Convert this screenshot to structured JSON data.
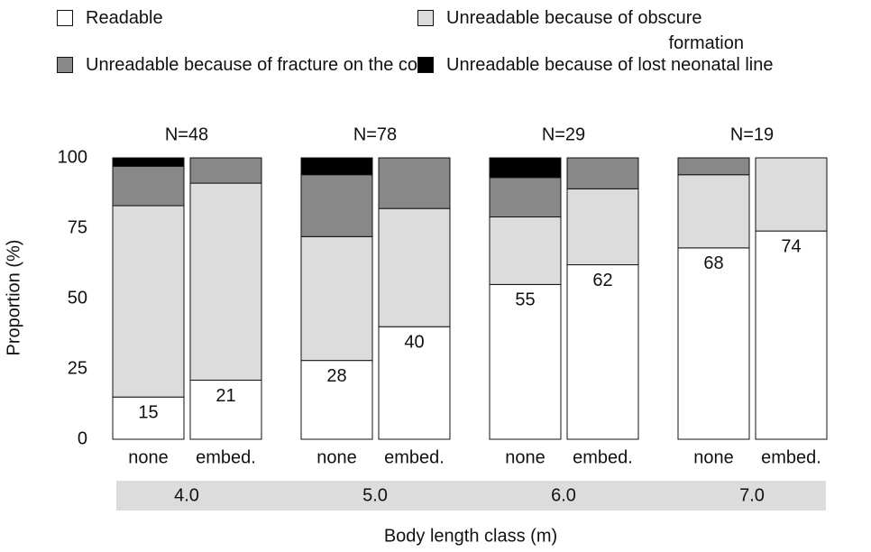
{
  "chart_data": {
    "type": "stacked_bar",
    "x_label": "Body length class (m)",
    "y_label": "Proportion (%)",
    "categories": [
      "none",
      "embed.",
      "none",
      "embed.",
      "none",
      "embed.",
      "none",
      "embed."
    ],
    "groups": [
      "4.0",
      "5.0",
      "6.0",
      "7.0"
    ],
    "group_annotations": [
      "N=48",
      "N=78",
      "N=29",
      "N=19"
    ],
    "series": [
      {
        "name": "Readable",
        "color": "#ffffff",
        "values": [
          15,
          21,
          28,
          40,
          55,
          62,
          68,
          74
        ]
      },
      {
        "name": "Unreadable because of obscure formation",
        "color": "#dcdcdc",
        "values": [
          68,
          70,
          44,
          42,
          24,
          27,
          26,
          26
        ]
      },
      {
        "name": "Unreadable because of fracture on the core",
        "color": "#888888",
        "values": [
          14,
          9,
          22,
          18,
          14,
          11,
          6,
          0
        ]
      },
      {
        "name": "Unreadable because of lost neonatal line",
        "color": "#000000",
        "values": [
          3,
          0,
          6,
          0,
          7,
          0,
          0,
          0
        ]
      }
    ],
    "labeled_series": 0,
    "ylim": [
      0,
      100
    ],
    "yticks": [
      0,
      25,
      50,
      75,
      100
    ]
  }
}
